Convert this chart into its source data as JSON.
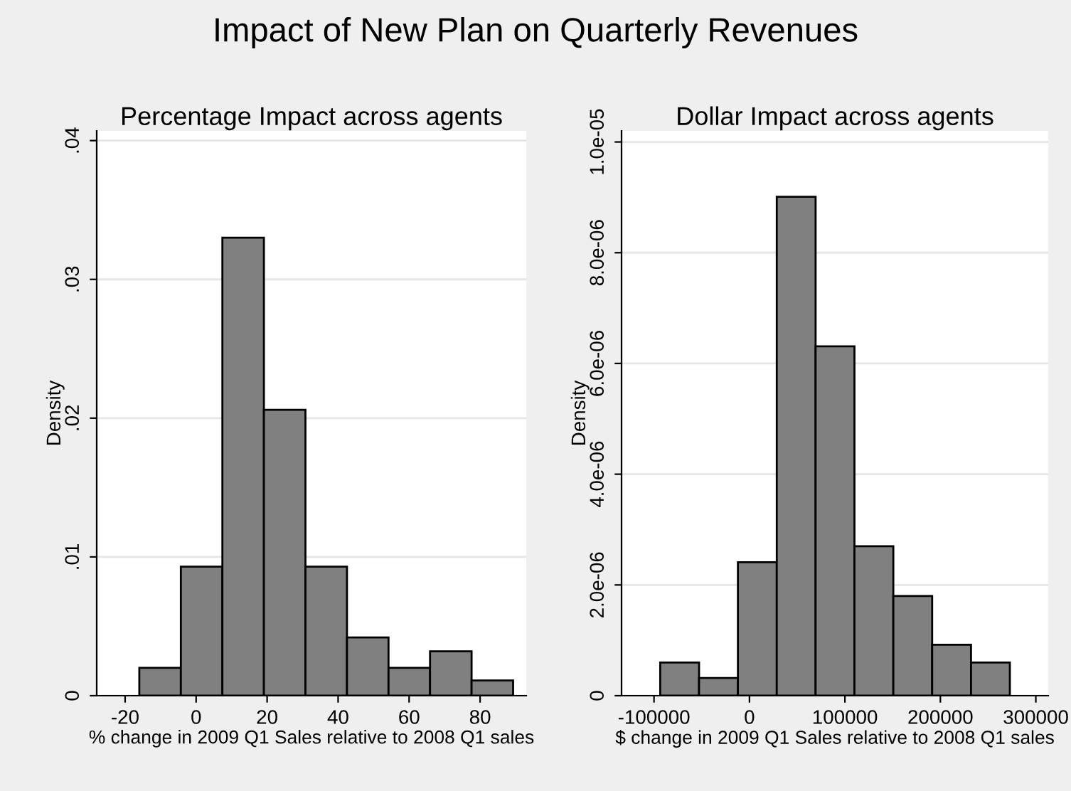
{
  "chart_data": [
    {
      "type": "histogram",
      "title": "Impact of New Plan on Quarterly Revenues",
      "subtitle": "Percentage Impact across agents",
      "xlabel": "% change in 2009 Q1 Sales relative to 2008 Q1 sales",
      "ylabel": "Density",
      "bins": [
        -16.0,
        -4.3,
        7.4,
        19.1,
        30.8,
        42.5,
        54.2,
        65.9,
        77.6,
        89.3
      ],
      "values": [
        0.002,
        0.0093,
        0.033,
        0.0206,
        0.0093,
        0.0042,
        0.002,
        0.0032,
        0.0011
      ],
      "color": "#808080",
      "xlim": [
        -28,
        93
      ],
      "ylim": [
        0,
        0.0407
      ],
      "xticks": [
        -20,
        0,
        20,
        40,
        60,
        80
      ],
      "yticks": [
        {
          "value": 0,
          "label": "0"
        },
        {
          "value": 0.01,
          "label": ".01"
        },
        {
          "value": 0.02,
          "label": ".02"
        },
        {
          "value": 0.03,
          "label": ".03"
        },
        {
          "value": 0.04,
          "label": ".04"
        }
      ],
      "grid": "y"
    },
    {
      "type": "histogram",
      "title": "Dollar Impact across agents",
      "xlabel": "$ change in 2009 Q1 Sales relative to 2008 Q1 sales",
      "ylabel": "Density",
      "bins": [
        -93500,
        -52800,
        -12100,
        28600,
        69300,
        110000,
        150700,
        191400,
        232100,
        272800
      ],
      "values": [
        6e-07,
        3.2e-07,
        2.41e-06,
        9.01e-06,
        6.31e-06,
        2.7e-06,
        1.8e-06,
        9.2e-07,
        6e-07
      ],
      "color": "#808080",
      "xlim": [
        -134000,
        313000
      ],
      "ylim": [
        0,
        1.02e-05
      ],
      "xticks": [
        -100000,
        0,
        100000,
        200000,
        300000
      ],
      "yticks": [
        {
          "value": 0,
          "label": "0"
        },
        {
          "value": 2e-06,
          "label": "2.0e-06"
        },
        {
          "value": 4e-06,
          "label": "4.0e-06"
        },
        {
          "value": 6e-06,
          "label": "6.0e-06"
        },
        {
          "value": 8e-06,
          "label": "8.0e-06"
        },
        {
          "value": 1e-05,
          "label": "1.0e-05"
        }
      ],
      "grid": "y"
    }
  ]
}
